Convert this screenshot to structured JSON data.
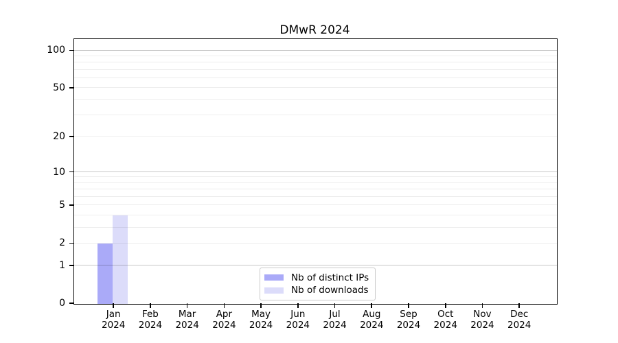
{
  "chart_data": {
    "type": "bar",
    "title": "DMwR 2024",
    "xlabel": "",
    "ylabel": "",
    "categories": [
      {
        "month": "Jan",
        "year": "2024"
      },
      {
        "month": "Feb",
        "year": "2024"
      },
      {
        "month": "Mar",
        "year": "2024"
      },
      {
        "month": "Apr",
        "year": "2024"
      },
      {
        "month": "May",
        "year": "2024"
      },
      {
        "month": "Jun",
        "year": "2024"
      },
      {
        "month": "Jul",
        "year": "2024"
      },
      {
        "month": "Aug",
        "year": "2024"
      },
      {
        "month": "Sep",
        "year": "2024"
      },
      {
        "month": "Oct",
        "year": "2024"
      },
      {
        "month": "Nov",
        "year": "2024"
      },
      {
        "month": "Dec",
        "year": "2024"
      }
    ],
    "series": [
      {
        "name": "Nb of distinct IPs",
        "color": "#aaaaf8",
        "values": [
          2,
          0,
          0,
          0,
          0,
          0,
          0,
          0,
          0,
          0,
          0,
          0
        ]
      },
      {
        "name": "Nb of downloads",
        "color": "#dcdcfa",
        "values": [
          4,
          0,
          0,
          0,
          0,
          0,
          0,
          0,
          0,
          0,
          0,
          0
        ]
      }
    ],
    "yscale": "log10(1+y)",
    "ylim": [
      0,
      117
    ],
    "yticks": [
      0,
      1,
      2,
      5,
      10,
      20,
      50,
      100
    ],
    "grid": {
      "orientation": "horizontal",
      "major_values": [
        1,
        10,
        100
      ],
      "minor_values": [
        2,
        3,
        4,
        5,
        6,
        7,
        8,
        9,
        20,
        30,
        40,
        50,
        60,
        70,
        80,
        90
      ],
      "major_color": "#c7c7c7",
      "minor_color": "#ededed"
    },
    "legend_position": "lower center"
  }
}
